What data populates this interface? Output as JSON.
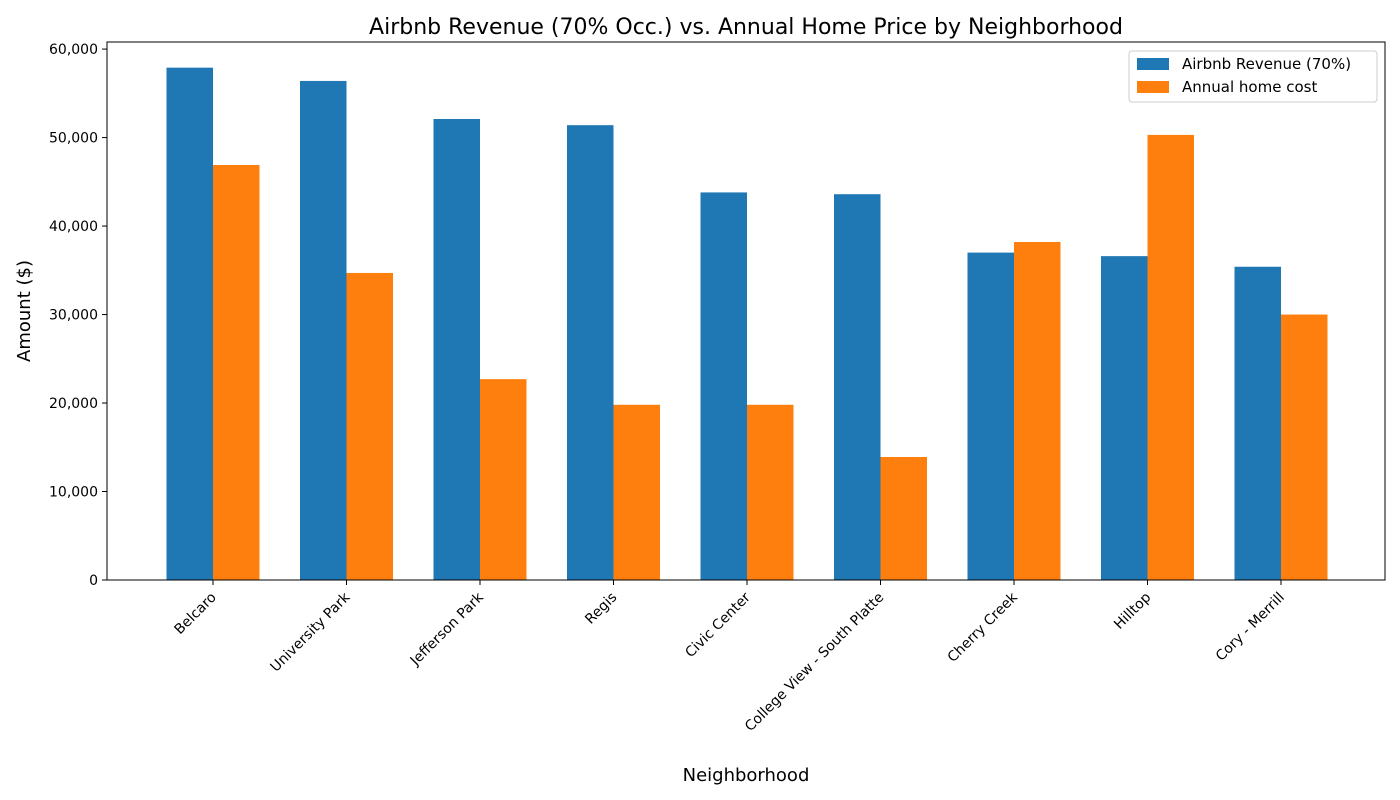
{
  "chart_data": {
    "type": "bar",
    "title": "Airbnb Revenue (70% Occ.) vs. Annual Home Price by Neighborhood",
    "xlabel": "Neighborhood",
    "ylabel": "Amount ($)",
    "ylim": [
      0,
      60800
    ],
    "yticks": [
      0,
      10000,
      20000,
      30000,
      40000,
      50000,
      60000
    ],
    "ytick_labels": [
      "0",
      "10,000",
      "20,000",
      "30,000",
      "40,000",
      "50,000",
      "60,000"
    ],
    "categories": [
      "Belcaro",
      "University Park",
      "Jefferson Park",
      "Regis",
      "Civic Center",
      "College View - South Platte",
      "Cherry Creek",
      "Hilltop",
      "Cory - Merrill"
    ],
    "series": [
      {
        "name": "Airbnb Revenue (70%)",
        "color": "#1f77b4",
        "values": [
          57900,
          56400,
          52100,
          51400,
          43800,
          43600,
          37000,
          36600,
          35400
        ]
      },
      {
        "name": "Annual home cost",
        "color": "#ff7f0e",
        "values": [
          46900,
          34700,
          22700,
          19800,
          19800,
          13900,
          38200,
          50300,
          30000
        ]
      }
    ],
    "grid": false,
    "legend_position": "top-right"
  }
}
